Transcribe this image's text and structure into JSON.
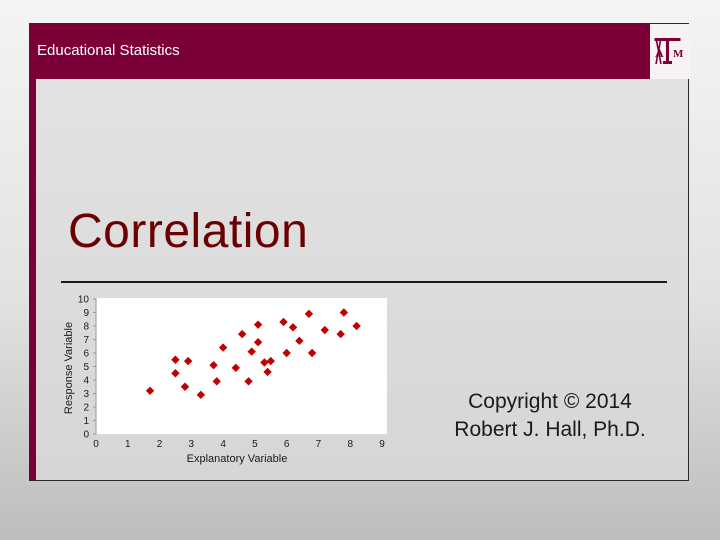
{
  "header": {
    "title": "Educational Statistics"
  },
  "logo": {
    "name": "texas-am-logo",
    "text": "ATM",
    "color": "#7a0037"
  },
  "slide": {
    "title": "Correlation"
  },
  "copyright": {
    "line1": "Copyright © 2014",
    "line2": "Robert J. Hall, Ph.D."
  },
  "colors": {
    "accent": "#7a0037",
    "title": "#6b0000",
    "marker": "#c00000"
  },
  "chart_data": {
    "type": "scatter",
    "title": "",
    "xlabel": "Explanatory Variable",
    "ylabel": "Response Variable",
    "xlim": [
      0,
      9
    ],
    "ylim": [
      0,
      10
    ],
    "x_ticks": [
      0,
      1,
      2,
      3,
      4,
      5,
      6,
      7,
      8,
      9
    ],
    "y_ticks": [
      0,
      1,
      2,
      3,
      4,
      5,
      6,
      7,
      8,
      9,
      10
    ],
    "grid": false,
    "marker": "diamond",
    "points": [
      {
        "x": 1.7,
        "y": 3.2
      },
      {
        "x": 2.5,
        "y": 5.5
      },
      {
        "x": 2.5,
        "y": 4.5
      },
      {
        "x": 2.8,
        "y": 3.5
      },
      {
        "x": 2.9,
        "y": 5.4
      },
      {
        "x": 3.3,
        "y": 2.9
      },
      {
        "x": 3.7,
        "y": 5.1
      },
      {
        "x": 3.8,
        "y": 3.9
      },
      {
        "x": 4.0,
        "y": 6.4
      },
      {
        "x": 4.4,
        "y": 4.9
      },
      {
        "x": 4.6,
        "y": 7.4
      },
      {
        "x": 4.8,
        "y": 3.9
      },
      {
        "x": 4.9,
        "y": 6.1
      },
      {
        "x": 5.1,
        "y": 8.1
      },
      {
        "x": 5.1,
        "y": 6.8
      },
      {
        "x": 5.3,
        "y": 5.3
      },
      {
        "x": 5.4,
        "y": 4.6
      },
      {
        "x": 5.5,
        "y": 5.4
      },
      {
        "x": 5.9,
        "y": 8.3
      },
      {
        "x": 6.0,
        "y": 6.0
      },
      {
        "x": 6.2,
        "y": 7.9
      },
      {
        "x": 6.4,
        "y": 6.9
      },
      {
        "x": 6.7,
        "y": 8.9
      },
      {
        "x": 6.8,
        "y": 6.0
      },
      {
        "x": 7.2,
        "y": 7.7
      },
      {
        "x": 7.7,
        "y": 7.4
      },
      {
        "x": 7.8,
        "y": 9.0
      },
      {
        "x": 8.2,
        "y": 8.0
      }
    ]
  }
}
